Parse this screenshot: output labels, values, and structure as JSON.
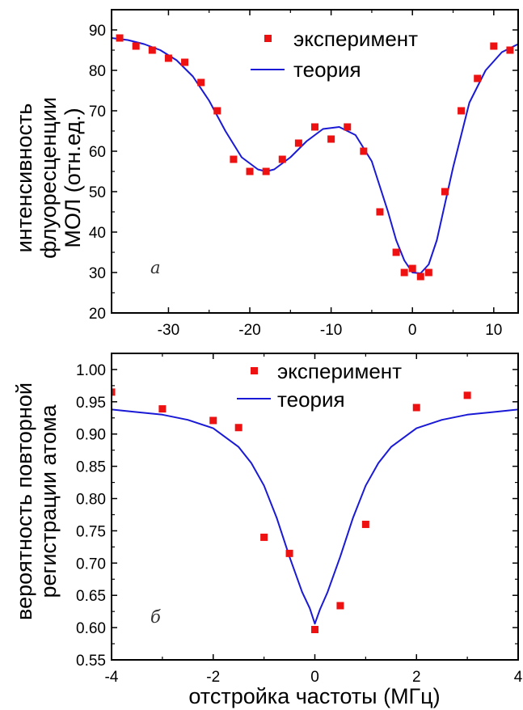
{
  "chart_data": [
    {
      "type": "scatter",
      "panel_label": "a",
      "ylabel_line1": "интенсивность",
      "ylabel_line2": "флуоресценции",
      "ylabel_line3": "МОЛ (отн.ед.)",
      "xlim": [
        -37,
        13
      ],
      "ylim": [
        20,
        95
      ],
      "x_ticks": [
        -30,
        -20,
        -10,
        0,
        10
      ],
      "y_ticks": [
        20,
        30,
        40,
        50,
        60,
        70,
        80,
        90
      ],
      "legend": {
        "position": "top-right",
        "marker_label": "эксперимент",
        "line_label": "теория"
      },
      "colors": {
        "experiment": "#ee1111",
        "theory": "#1a1ad6"
      },
      "series": [
        {
          "name": "эксперимент",
          "kind": "markers",
          "x": [
            -36,
            -34,
            -32,
            -30,
            -28,
            -26,
            -24,
            -22,
            -20,
            -18,
            -16,
            -14,
            -12,
            -10,
            -8,
            -6,
            -4,
            -2,
            -1,
            0,
            1,
            2,
            4,
            6,
            8,
            10,
            12
          ],
          "y": [
            88,
            86,
            85,
            83,
            82,
            77,
            70,
            58,
            55,
            55,
            58,
            62,
            66,
            63,
            66,
            60,
            45,
            35,
            30,
            31,
            29,
            30,
            50,
            70,
            78,
            86,
            85
          ]
        },
        {
          "name": "теория",
          "kind": "line",
          "x": [
            -37,
            -35,
            -33,
            -31,
            -29,
            -27,
            -25,
            -23,
            -21,
            -19,
            -18,
            -17,
            -15,
            -13,
            -11,
            -9,
            -7,
            -5,
            -3,
            -2,
            -1,
            0,
            1,
            2,
            3,
            5,
            7,
            9,
            11,
            13
          ],
          "y": [
            88,
            87.5,
            86.5,
            85,
            82.5,
            78.5,
            72.5,
            65,
            58.5,
            55.5,
            55,
            55.5,
            58.5,
            62.5,
            65.5,
            66,
            64,
            57.5,
            45,
            38,
            33,
            30,
            29.8,
            32,
            38,
            56,
            72,
            80,
            84.5,
            86.5
          ]
        }
      ]
    },
    {
      "type": "scatter",
      "panel_label": "б",
      "ylabel_line1": "вероятность повторной",
      "ylabel_line2": "регистрации атома",
      "xlabel": "отстройка частоты (МГц)",
      "xlim": [
        -4,
        4
      ],
      "ylim": [
        0.55,
        1.025
      ],
      "x_ticks": [
        -4,
        -2,
        0,
        2,
        4
      ],
      "y_ticks": [
        0.55,
        0.6,
        0.65,
        0.7,
        0.75,
        0.8,
        0.85,
        0.9,
        0.95,
        1.0
      ],
      "y_tick_labels": [
        "0.55",
        "0.60",
        "0.65",
        "0.70",
        "0.75",
        "0.80",
        "0.85",
        "0.90",
        "0.95",
        "1.00"
      ],
      "legend": {
        "position": "top-center",
        "marker_label": "эксперимент",
        "line_label": "теория"
      },
      "colors": {
        "experiment": "#ee1111",
        "theory": "#1a1ad6"
      },
      "series": [
        {
          "name": "эксперимент",
          "kind": "markers",
          "x": [
            -4,
            -3,
            -2,
            -1.5,
            -1,
            -0.5,
            0,
            0.5,
            1,
            2,
            3
          ],
          "y": [
            0.965,
            0.939,
            0.921,
            0.91,
            0.74,
            0.715,
            0.597,
            0.634,
            0.76,
            0.941,
            0.96
          ]
        },
        {
          "name": "теория",
          "kind": "line",
          "x": [
            -4,
            -3.5,
            -3,
            -2.5,
            -2,
            -1.5,
            -1.25,
            -1,
            -0.75,
            -0.5,
            -0.25,
            -0.1,
            0,
            0.1,
            0.25,
            0.5,
            0.75,
            1,
            1.25,
            1.5,
            2,
            2.5,
            3,
            3.5,
            4
          ],
          "y": [
            0.938,
            0.934,
            0.93,
            0.922,
            0.909,
            0.88,
            0.855,
            0.82,
            0.77,
            0.71,
            0.655,
            0.63,
            0.606,
            0.628,
            0.655,
            0.71,
            0.77,
            0.82,
            0.855,
            0.88,
            0.909,
            0.922,
            0.93,
            0.934,
            0.938
          ]
        }
      ]
    }
  ]
}
